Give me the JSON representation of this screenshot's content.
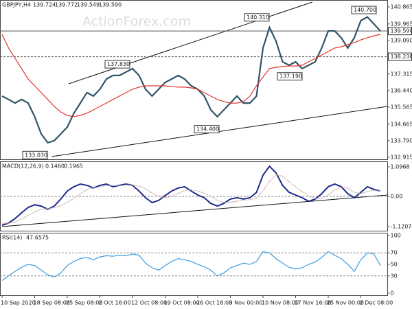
{
  "header": {
    "symbol": "GBPJPY,H4",
    "quote": [
      139.724,
      139.772,
      139.549,
      {
        "value": 139.59,
        "label": "139.590"
      }
    ]
  },
  "watermark": "ActionForex.com",
  "chart_data": [
    {
      "type": "line",
      "annotations": [
        {
          "value": 140.31,
          "label": "140.310"
        },
        {
          "value": 137.83,
          "label": "137.830"
        },
        {
          "value": 133.03,
          "label": "133.030"
        },
        {
          "value": 134.4,
          "label": "134.400"
        },
        {
          "value": 137.19,
          "label": "137.190"
        },
        {
          "value": 140.7,
          "label": "140.700"
        }
      ],
      "levels": [
        {
          "value": 139.59,
          "label": "139.590"
        },
        {
          "value": 138.23,
          "label": "138.230"
        }
      ],
      "series": [
        {
          "color": "#2f5466",
          "values": [
            136.15,
            135.97,
            135.78,
            135.97,
            135.78,
            135.06,
            134.15,
            133.68,
            133.79,
            134.15,
            134.51,
            135.24,
            135.78,
            136.33,
            136.15,
            136.51,
            137.05,
            137.24,
            137.24,
            137.42,
            137.6,
            137.24,
            136.51,
            136.15,
            136.51,
            136.87,
            137.05,
            137.24,
            137.05,
            136.69,
            136.51,
            136.15,
            135.42,
            135.06,
            135.42,
            135.78,
            136.15,
            135.78,
            135.78,
            136.15,
            138.69,
            139.78,
            139.05,
            137.96,
            137.78,
            137.96,
            137.6,
            137.78,
            137.96,
            138.69,
            139.59,
            139.59,
            139.23,
            138.69,
            139.23,
            140.14,
            140.33,
            139.96,
            139.59
          ]
        },
        {
          "color": "#e0352b",
          "values": [
            139.41,
            138.69,
            138.14,
            137.6,
            137.05,
            136.69,
            136.33,
            135.97,
            135.6,
            135.31,
            135.13,
            135.06,
            135.13,
            135.24,
            135.42,
            135.6,
            135.78,
            135.97,
            136.15,
            136.33,
            136.51,
            136.62,
            136.69,
            136.69,
            136.69,
            136.69,
            136.65,
            136.62,
            136.62,
            136.58,
            136.51,
            136.33,
            136.15,
            135.97,
            135.86,
            135.78,
            135.78,
            135.86,
            136.15,
            136.69,
            137.16,
            137.6,
            137.67,
            137.71,
            137.74,
            137.74,
            137.78,
            137.96,
            138.14,
            138.32,
            138.51,
            138.69,
            138.76,
            138.87,
            138.98,
            139.12,
            139.23,
            139.34,
            139.41
          ]
        }
      ],
      "ylim": [
        132.806,
        141.228
      ],
      "yticks": [
        140.865,
        139.965,
        {
          "value": 139.09,
          "label": "139.090"
        },
        137.315,
        {
          "value": 136.44,
          "label": "136.440"
        },
        135.565,
        134.665,
        {
          "value": 133.79,
          "label": "133.790"
        },
        132.915
      ]
    },
    {
      "type": "line",
      "label": "MACD(12,26,9)",
      "readings": [
        {
          "value": 0.146,
          "label": "0.1460"
        },
        {
          "value": 0.1965,
          "label": "0.1965"
        }
      ],
      "levels": [
        0
      ],
      "series": [
        {
          "color": "#1c2a8c",
          "values": [
            -1.07,
            -0.99,
            -0.82,
            -0.61,
            -0.41,
            -0.31,
            -0.36,
            -0.48,
            -0.36,
            -0.1,
            0.2,
            0.36,
            0.46,
            0.41,
            0.31,
            0.41,
            0.46,
            0.36,
            0.41,
            0.46,
            0.41,
            0.2,
            -0.05,
            -0.23,
            -0.15,
            0.03,
            0.2,
            0.31,
            0.36,
            0.2,
            0.05,
            -0.05,
            -0.26,
            -0.36,
            -0.26,
            -0.1,
            -0.05,
            -0.1,
            -0.05,
            0.15,
            0.79,
            1.12,
            0.87,
            0.41,
            0.15,
            0.05,
            -0.05,
            -0.18,
            -0.1,
            0.1,
            0.36,
            0.46,
            0.36,
            0.1,
            -0.05,
            0.15,
            0.36,
            0.26,
            0.2
          ]
        },
        {
          "color": "#c9a7a7",
          "values": [
            -1.0,
            -1.0,
            -0.95,
            -0.85,
            -0.7,
            -0.58,
            -0.48,
            -0.45,
            -0.42,
            -0.35,
            -0.22,
            -0.08,
            0.1,
            0.25,
            0.32,
            0.36,
            0.4,
            0.4,
            0.4,
            0.42,
            0.42,
            0.38,
            0.28,
            0.12,
            0.0,
            -0.05,
            0.0,
            0.12,
            0.22,
            0.25,
            0.2,
            0.12,
            0.0,
            -0.15,
            -0.22,
            -0.22,
            -0.18,
            -0.14,
            -0.12,
            -0.05,
            0.2,
            0.55,
            0.8,
            0.75,
            0.55,
            0.35,
            0.18,
            0.02,
            -0.08,
            -0.08,
            0.05,
            0.25,
            0.35,
            0.3,
            0.15,
            0.1,
            0.18,
            0.22,
            0.2
          ]
        }
      ],
      "ylim": [
        -1.275,
        1.275
      ],
      "yticks": [
        1.0968,
        {
          "value": 0,
          "label": "0.00"
        },
        -1.1207
      ]
    },
    {
      "type": "line",
      "label": "RSI(14)",
      "readings": [
        47.6575
      ],
      "levels": [
        70,
        30
      ],
      "series": [
        {
          "color": "#3b9ce0",
          "values": [
            22,
            30,
            38,
            45,
            50,
            48,
            40,
            32,
            28,
            35,
            48,
            55,
            60,
            62,
            58,
            63,
            65,
            64,
            66,
            65,
            68,
            66,
            52,
            44,
            40,
            48,
            55,
            60,
            58,
            55,
            50,
            46,
            40,
            30,
            35,
            44,
            48,
            52,
            50,
            55,
            72,
            70,
            60,
            52,
            45,
            42,
            44,
            50,
            54,
            62,
            72,
            66,
            60,
            50,
            38,
            58,
            70,
            68,
            48
          ]
        }
      ],
      "ylim": [
        -3.6,
        103.6
      ],
      "yticks": [
        100,
        70,
        50,
        30,
        0
      ],
      "categories": [
        "10 Sep 2020",
        null,
        null,
        null,
        null,
        "18 Sep 08:00",
        null,
        null,
        null,
        null,
        "25 Sep 08:00",
        null,
        null,
        null,
        null,
        "2 Oct 16:00",
        null,
        null,
        null,
        null,
        "12 Oct 08:00",
        null,
        null,
        null,
        null,
        "19 Oct 08:00",
        null,
        null,
        null,
        null,
        "26 Oct 16:00",
        null,
        null,
        null,
        null,
        "3 Nov 00:00",
        null,
        null,
        null,
        null,
        "10 Nov 08:00",
        null,
        null,
        null,
        null,
        "17 Nov 16:00",
        null,
        null,
        null,
        null,
        "25 Nov 00:00",
        null,
        null,
        null,
        null,
        "2 Dec 08:00",
        null,
        null,
        null
      ]
    }
  ]
}
